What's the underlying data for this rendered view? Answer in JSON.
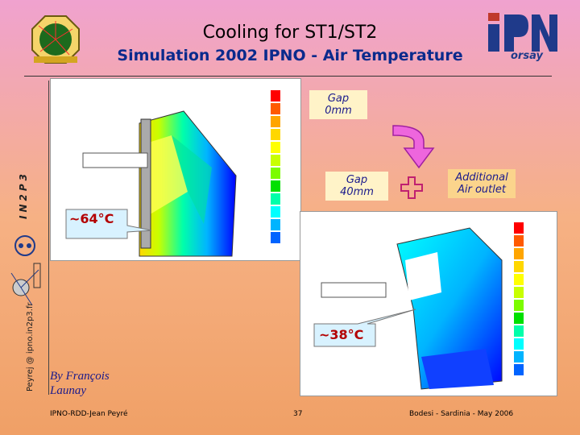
{
  "slide": {
    "title": "Cooling for ST1/ST2",
    "subtitle": "Simulation 2002 IPNO - Air Temperature",
    "callouts": {
      "gap0": "Gap\n0mm",
      "gap0_line1": "Gap",
      "gap0_line2": "0mm",
      "gap40_line1": "Gap",
      "gap40_line2": "40mm",
      "plus": "+",
      "outlet_line1": "Additional",
      "outlet_line2": "Air outlet",
      "temp_hot": "~64°C",
      "temp_cool": "~38°C"
    },
    "author_line1": "By François",
    "author_line2": "Launay",
    "sidebar_credit": "Peyrej @ ipno.in2p3.fr",
    "logo_text": "IN2P3",
    "ipn_logo": "IPN",
    "ipn_sub": "orsay",
    "footer": {
      "left": "IPNO-RDD-Jean Peyré",
      "page": "37",
      "right": "Bodesi - Sardinia - May 2006"
    }
  },
  "colors": {
    "subtitle": "#0a2a8c",
    "callout_bg": "#fff3c8",
    "callout_text": "#1a1a8c",
    "legend": [
      "#ff0000",
      "#ff5a00",
      "#ffa500",
      "#ffd700",
      "#ffff00",
      "#c8ff00",
      "#7cfc00",
      "#00e000",
      "#00ffaa",
      "#00ffff",
      "#00b4ff",
      "#0064ff",
      "#0000ff"
    ]
  }
}
